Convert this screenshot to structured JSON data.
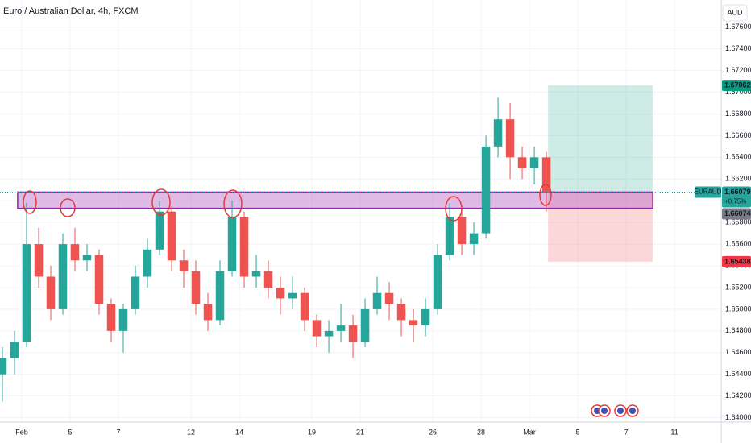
{
  "chart_data": {
    "type": "candlestick",
    "title": "Euro / Australian Dollar, 4h, FXCM",
    "currency": "AUD",
    "symbol": "EURAUD",
    "change": "+0.75%",
    "up_color": "#26a69a",
    "down_color": "#ef5350",
    "x": [
      -0.8,
      -0.3,
      0.2,
      0.7,
      1.2,
      1.7,
      2.2,
      2.7,
      3.2,
      3.7,
      4.2,
      4.7,
      5.2,
      5.7,
      6.2,
      6.7,
      7.2,
      7.7,
      8.2,
      8.7,
      9.2,
      9.7,
      10.2,
      10.7,
      11.2,
      11.7,
      12.2,
      12.7,
      13.2,
      13.7,
      14.2,
      14.7,
      15.2,
      15.7,
      16.2,
      16.7,
      17.2,
      17.7,
      18.2,
      18.7,
      19.2,
      19.7,
      20.2,
      20.7,
      21.2,
      21.7
    ],
    "open": [
      1.644,
      1.6455,
      1.647,
      1.656,
      1.653,
      1.65,
      1.656,
      1.6545,
      1.655,
      1.6505,
      1.648,
      1.65,
      1.653,
      1.6555,
      1.659,
      1.6545,
      1.6535,
      1.6505,
      1.649,
      1.6535,
      1.6585,
      1.653,
      1.6535,
      1.652,
      1.651,
      1.6515,
      1.649,
      1.6475,
      1.648,
      1.6485,
      1.647,
      1.65,
      1.6515,
      1.6505,
      1.649,
      1.6485,
      1.65,
      1.655,
      1.6585,
      1.656,
      1.657,
      1.665,
      1.6675,
      1.664,
      1.663,
      1.664
    ],
    "high": [
      1.6465,
      1.648,
      1.6598,
      1.6575,
      1.654,
      1.657,
      1.6575,
      1.656,
      1.6555,
      1.651,
      1.6505,
      1.654,
      1.6565,
      1.66,
      1.6595,
      1.6555,
      1.6545,
      1.6515,
      1.6545,
      1.66,
      1.659,
      1.655,
      1.6545,
      1.653,
      1.653,
      1.652,
      1.6495,
      1.649,
      1.6505,
      1.6495,
      1.651,
      1.653,
      1.6525,
      1.651,
      1.65,
      1.651,
      1.656,
      1.6598,
      1.659,
      1.658,
      1.666,
      1.6695,
      1.669,
      1.665,
      1.665,
      1.6645
    ],
    "low": [
      1.6415,
      1.644,
      1.6465,
      1.652,
      1.649,
      1.6495,
      1.6535,
      1.6535,
      1.6495,
      1.647,
      1.646,
      1.6495,
      1.652,
      1.655,
      1.6535,
      1.652,
      1.6495,
      1.648,
      1.6485,
      1.653,
      1.652,
      1.652,
      1.651,
      1.6495,
      1.65,
      1.648,
      1.6465,
      1.646,
      1.647,
      1.6455,
      1.6465,
      1.6495,
      1.649,
      1.6475,
      1.647,
      1.6475,
      1.6495,
      1.6545,
      1.655,
      1.655,
      1.6565,
      1.664,
      1.662,
      1.662,
      1.6615,
      1.659
    ],
    "close": [
      1.6455,
      1.647,
      1.656,
      1.653,
      1.65,
      1.656,
      1.6545,
      1.655,
      1.6505,
      1.648,
      1.65,
      1.653,
      1.6555,
      1.659,
      1.6545,
      1.6535,
      1.6505,
      1.649,
      1.6535,
      1.6585,
      1.653,
      1.6535,
      1.652,
      1.651,
      1.6515,
      1.649,
      1.6475,
      1.648,
      1.6485,
      1.647,
      1.65,
      1.6515,
      1.6505,
      1.649,
      1.6485,
      1.65,
      1.655,
      1.6585,
      1.656,
      1.657,
      1.665,
      1.6675,
      1.664,
      1.663,
      1.664,
      1.66079
    ],
    "xlim": [
      -0.9,
      28.93
    ],
    "ylim": [
      1.6396,
      1.6785
    ],
    "xticks": [
      {
        "value": 0,
        "label": "Feb"
      },
      {
        "value": 2,
        "label": "5"
      },
      {
        "value": 4,
        "label": "7"
      },
      {
        "value": 7,
        "label": "12"
      },
      {
        "value": 9,
        "label": "14"
      },
      {
        "value": 12,
        "label": "19"
      },
      {
        "value": 14,
        "label": "21"
      },
      {
        "value": 17,
        "label": "26"
      },
      {
        "value": 19,
        "label": "28"
      },
      {
        "value": 21,
        "label": "Mar"
      },
      {
        "value": 23,
        "label": "5"
      },
      {
        "value": 25,
        "label": "7"
      },
      {
        "value": 27,
        "label": "11"
      }
    ],
    "yticks": [
      {
        "value": 1.64,
        "label": "1.64000"
      },
      {
        "value": 1.642,
        "label": "1.64200"
      },
      {
        "value": 1.644,
        "label": "1.64400"
      },
      {
        "value": 1.646,
        "label": "1.64600"
      },
      {
        "value": 1.648,
        "label": "1.64800"
      },
      {
        "value": 1.65,
        "label": "1.65000"
      },
      {
        "value": 1.652,
        "label": "1.65200"
      },
      {
        "value": 1.654,
        "label": "1.65400"
      },
      {
        "value": 1.656,
        "label": "1.65600"
      },
      {
        "value": 1.658,
        "label": "1.65800"
      },
      {
        "value": 1.66,
        "label": "1.66000"
      },
      {
        "value": 1.662,
        "label": "1.66200"
      },
      {
        "value": 1.664,
        "label": "1.66400"
      },
      {
        "value": 1.666,
        "label": "1.66600"
      },
      {
        "value": 1.668,
        "label": "1.66800"
      },
      {
        "value": 1.67,
        "label": "1.67000"
      },
      {
        "value": 1.672,
        "label": "1.67200"
      },
      {
        "value": 1.674,
        "label": "1.67400"
      },
      {
        "value": 1.676,
        "label": "1.67600"
      }
    ],
    "zone": {
      "low": 1.6593,
      "high": 1.6608,
      "start": -0.17,
      "end": 26.1
    },
    "position": {
      "entry": 1.66079,
      "target": 1.67062,
      "stop": 1.65438,
      "start": 21.77,
      "end": 26.1
    },
    "last_price": 1.66074
  }
}
